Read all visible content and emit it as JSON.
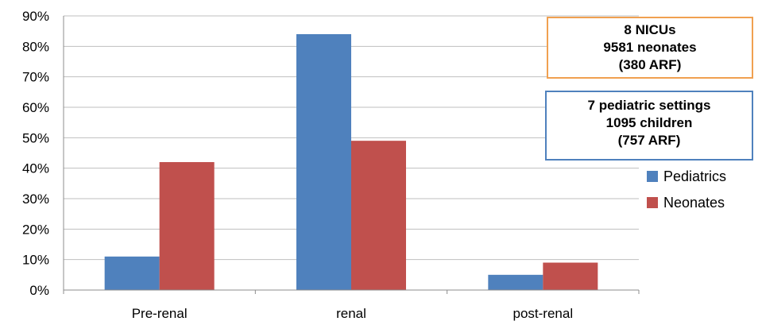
{
  "chart_data": {
    "type": "bar",
    "categories": [
      "Pre-renal",
      "renal",
      "post-renal"
    ],
    "series": [
      {
        "name": "Pediatrics",
        "values": [
          11,
          84,
          5
        ],
        "color": "#4f81bd"
      },
      {
        "name": "Neonates",
        "values": [
          42,
          49,
          9
        ],
        "color": "#c0504d"
      }
    ],
    "ylim": [
      0,
      90
    ],
    "yticks": [
      "0%",
      "10%",
      "20%",
      "30%",
      "40%",
      "50%",
      "60%",
      "70%",
      "80%",
      "90%"
    ],
    "grid": true,
    "legend_position": "right",
    "annotations": {
      "neonates": {
        "line1": "8  NICUs",
        "line2": "9581 neonates",
        "line3": "(380 ARF)",
        "border_color": "#f0a050"
      },
      "pediatric": {
        "line1": "7 pediatric settings",
        "line2": "1095 children",
        "line3": "(757 ARF)",
        "border_color": "#4f81bd"
      }
    }
  }
}
